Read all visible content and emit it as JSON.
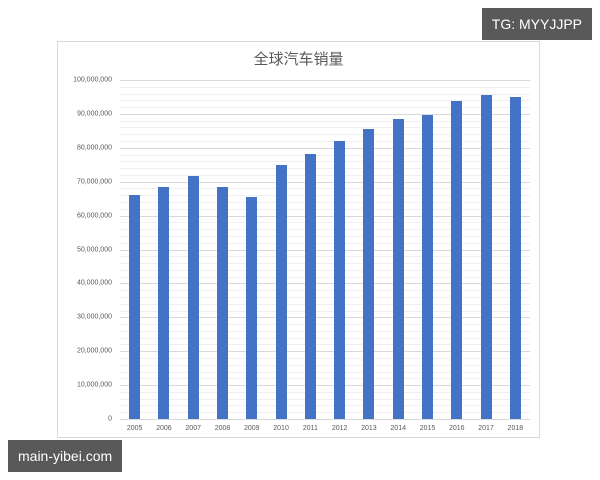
{
  "watermarks": {
    "top_right": "TG: MYYJJPP",
    "bottom_left": "main-yibei.com"
  },
  "chart_data": {
    "type": "bar",
    "title": "全球汽车销量",
    "xlabel": "",
    "ylabel": "",
    "ylim": [
      0,
      100000000
    ],
    "grid": true,
    "legend": "none",
    "bar_color": "#4472c4",
    "yticks": [
      "0",
      "10,000,000",
      "20,000,000",
      "30,000,000",
      "40,000,000",
      "50,000,000",
      "60,000,000",
      "70,000,000",
      "80,000,000",
      "90,000,000",
      "100,000,000"
    ],
    "categories": [
      "2005",
      "2006",
      "2007",
      "2008",
      "2009",
      "2010",
      "2011",
      "2012",
      "2013",
      "2014",
      "2015",
      "2016",
      "2017",
      "2018"
    ],
    "values": [
      66000000,
      68300000,
      71600000,
      68300000,
      65600000,
      75000000,
      78100000,
      82100000,
      85600000,
      88500000,
      89700000,
      93900000,
      95700000,
      95000000
    ]
  }
}
